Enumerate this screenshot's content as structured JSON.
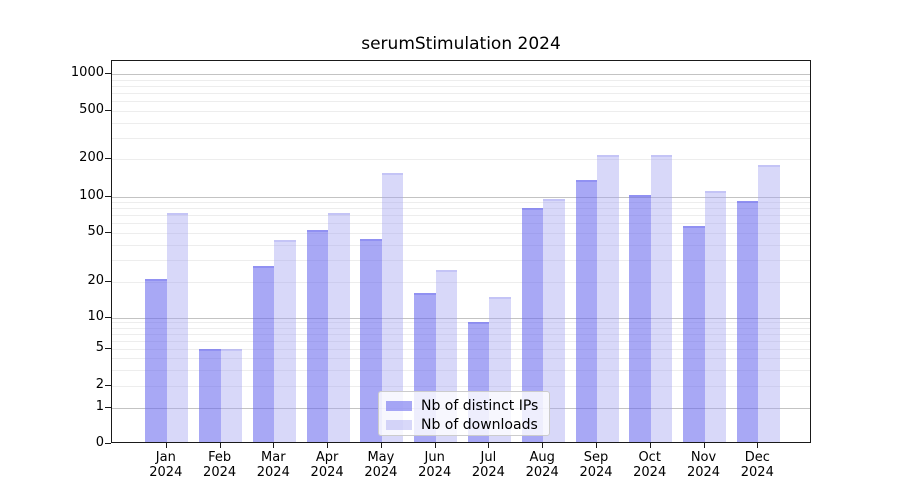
{
  "chart_data": {
    "type": "bar",
    "title": "serumStimulation 2024",
    "categories": [
      "Jan 2024",
      "Feb 2024",
      "Mar 2024",
      "Apr 2024",
      "May 2024",
      "Jun 2024",
      "Jul 2024",
      "Aug 2024",
      "Sep 2024",
      "Oct 2024",
      "Nov 2024",
      "Dec 2024"
    ],
    "series": [
      {
        "name": "Nb of distinct IPs",
        "values": [
          21,
          5,
          27,
          53,
          45,
          16,
          9,
          80,
          135,
          102,
          57,
          92
        ],
        "color": "#6666ee",
        "fill_alpha": 0.57,
        "edge_alpha": 0.35
      },
      {
        "name": "Nb of downloads",
        "values": [
          73,
          5,
          44,
          73,
          155,
          25,
          15,
          96,
          215,
          215,
          110,
          180
        ],
        "color": "#a0a0f0",
        "fill_alpha": 0.41,
        "edge_alpha": 0.35
      }
    ],
    "yscale": "symlog",
    "ylim": [
      0,
      1270
    ],
    "y_tick_labels": [
      1000,
      500,
      200,
      100,
      50,
      20,
      10,
      5,
      2,
      1,
      0
    ],
    "major_gridline_values": [
      1,
      10,
      100,
      1000
    ],
    "minor_gridline_values": [
      2,
      3,
      4,
      5,
      6,
      7,
      8,
      9,
      20,
      30,
      40,
      50,
      60,
      70,
      80,
      90,
      200,
      300,
      400,
      500,
      600,
      700,
      800,
      900
    ],
    "grid": true,
    "legend": {
      "position": "lower center",
      "entries": [
        "Nb of distinct IPs",
        "Nb of downloads"
      ]
    },
    "colors": {
      "major_grid": "#c3c3c3",
      "minor_grid": "#ededed",
      "spine": "#1a1a1a",
      "text": "#000000",
      "background": "#ffffff"
    }
  }
}
